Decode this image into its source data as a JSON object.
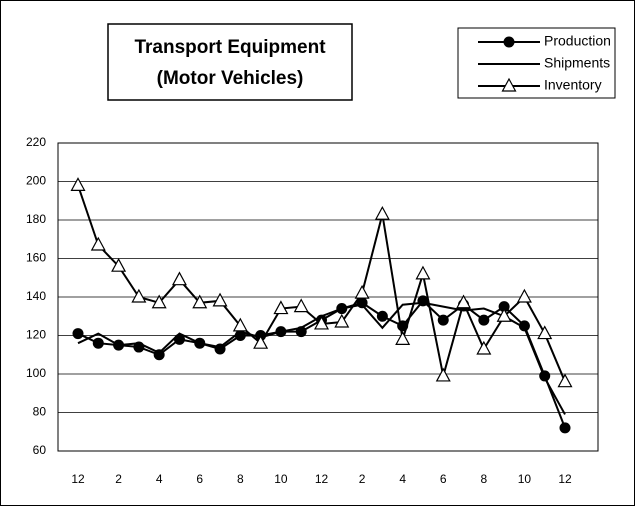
{
  "chart_data": {
    "type": "line",
    "title": "Transport Equipment",
    "subtitle": "(Motor Vehicles)",
    "categories": [
      "12",
      null,
      "2",
      null,
      "4",
      null,
      "6",
      null,
      "8",
      null,
      "10",
      null,
      "12",
      null,
      "2",
      null,
      "4",
      null,
      "6",
      null,
      "8",
      null,
      "10",
      null,
      "12"
    ],
    "series": [
      {
        "name": "Production",
        "color": "#000000",
        "marker": "circle",
        "values": [
          121,
          116,
          115,
          114,
          110,
          118,
          116,
          113,
          120,
          120,
          122,
          122,
          128,
          134,
          137,
          130,
          125,
          138,
          128,
          136,
          128,
          135,
          125,
          99,
          72
        ]
      },
      {
        "name": "Shipments",
        "color": "#000000",
        "marker": "none",
        "values": [
          116,
          121,
          115,
          116,
          111,
          121,
          116,
          114,
          122,
          119,
          122,
          124,
          130,
          134,
          136,
          124,
          136,
          137,
          135,
          133,
          134,
          130,
          124,
          98,
          79
        ]
      },
      {
        "name": "Inventory",
        "color": "#000000",
        "marker": "triangle",
        "values": [
          198,
          167,
          156,
          140,
          137,
          149,
          137,
          138,
          125,
          116,
          134,
          135,
          126,
          127,
          142,
          183,
          118,
          152,
          99,
          137,
          113,
          130,
          140,
          121,
          96
        ]
      }
    ],
    "ylim": [
      60,
      220
    ],
    "yticks": [
      60,
      80,
      100,
      120,
      140,
      160,
      180,
      200,
      220
    ],
    "grid": true,
    "legend": "top-right"
  }
}
